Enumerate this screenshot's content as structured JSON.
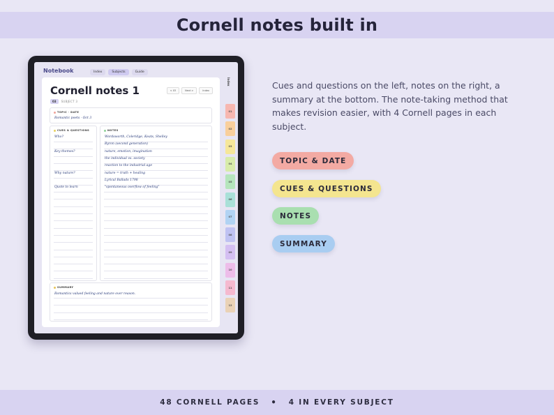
{
  "header": {
    "title": "Cornell notes built in"
  },
  "tablet": {
    "app_title": "Notebook",
    "nav_tabs": [
      "Index",
      "Subjects",
      "Guide"
    ],
    "active_tab": "Subjects",
    "page_title": "Cornell notes 1",
    "subject_badge": "03",
    "subject_label": "SUBJECT 3",
    "mini_buttons": [
      "< 03",
      "Next >",
      "Index"
    ],
    "index_label": "Index",
    "topic": {
      "label": "TOPIC · DATE",
      "text": "Romantic poets · Oct 3"
    },
    "cues": {
      "label": "CUES & QUESTIONS",
      "items": [
        {
          "text": "Who?",
          "row": 0
        },
        {
          "text": "Key themes?",
          "row": 2
        },
        {
          "text": "Why nature?",
          "row": 5
        },
        {
          "text": "Quote to learn",
          "row": 7
        }
      ]
    },
    "notes": {
      "label": "NOTES",
      "lines": [
        "Wordsworth, Coleridge, Keats, Shelley",
        "Byron (second generation)",
        "nature, emotion, imagination",
        "the individual vs. society",
        "reaction to the industrial age",
        "nature = truth + healing",
        "Lyrical Ballads 1798",
        "\"spontaneous overflow of feeling\""
      ]
    },
    "summary": {
      "label": "SUMMARY",
      "text": "Romantics valued feeling and nature over reason."
    },
    "side_tabs": [
      "01",
      "02",
      "03",
      "04",
      "05",
      "06",
      "07",
      "08",
      "09",
      "10",
      "11",
      "12"
    ]
  },
  "description": "Cues and questions on the left, notes on the right, a summary at the bottom. The note-taking method that makes revision easier, with 4 Cornell pages in each subject.",
  "legend": [
    {
      "label": "TOPIC & DATE",
      "color": "#f3aaa3"
    },
    {
      "label": "CUES & QUESTIONS",
      "color": "#f4e58f"
    },
    {
      "label": "NOTES",
      "color": "#a9dfb0"
    },
    {
      "label": "SUMMARY",
      "color": "#a9cdf1"
    }
  ],
  "footer": {
    "left": "48 CORNELL PAGES",
    "separator": "•",
    "right": "4 IN EVERY SUBJECT"
  },
  "colors": {
    "tab_colors": [
      "#f7b7b0",
      "#f9cf9c",
      "#f6e79a",
      "#d8ecaa",
      "#b5e5bc",
      "#a9e0d8",
      "#b1d3f3",
      "#bfc2f2",
      "#d4bff2",
      "#edbde9",
      "#f5b9cf",
      "#ead2b6"
    ]
  }
}
